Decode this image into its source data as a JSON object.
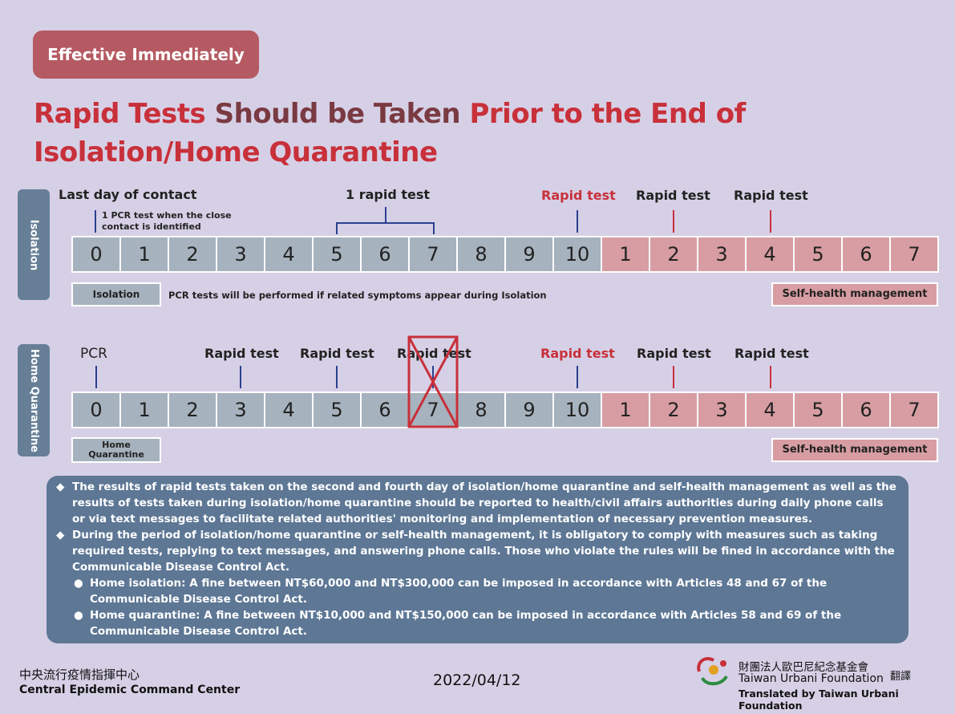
{
  "header": {
    "badge": "Effective Immediately",
    "title_part1": "Rapid Tests",
    "title_part2": " Should be Taken ",
    "title_part3": "Prior to the End of",
    "title_line2": "Isolation/Home Quarantine"
  },
  "isolation": {
    "side_label": "Isolation",
    "label_last_contact": "Last day of contact",
    "label_pcr_note_line1": "1 PCR test when the close",
    "label_pcr_note_line2": "contact is identified",
    "label_one_rapid": "1 rapid test",
    "label_rapid_10": "Rapid test",
    "label_rapid_sh2": "Rapid test",
    "label_rapid_sh4": "Rapid test",
    "days": [
      "0",
      "1",
      "2",
      "3",
      "4",
      "5",
      "6",
      "7",
      "8",
      "9",
      "10"
    ],
    "self_days": [
      "1",
      "2",
      "3",
      "4",
      "5",
      "6",
      "7"
    ],
    "legend_isolation": "Isolation",
    "legend_note": "PCR tests will be performed if related symptoms appear during Isolation",
    "legend_self": "Self-health management"
  },
  "quarantine": {
    "side_label": "Home Quarantine",
    "label_pcr": "PCR",
    "label_rapid_3": "Rapid test",
    "label_rapid_5": "Rapid test",
    "label_rapid_7": "Rapid test",
    "label_rapid_10": "Rapid test",
    "label_rapid_sh2": "Rapid test",
    "label_rapid_sh4": "Rapid test",
    "days": [
      "0",
      "1",
      "2",
      "3",
      "4",
      "5",
      "6",
      "7",
      "8",
      "9",
      "10"
    ],
    "self_days": [
      "1",
      "2",
      "3",
      "4",
      "5",
      "6",
      "7"
    ],
    "legend_home_line1": "Home",
    "legend_home_line2": "Quarantine",
    "legend_self": "Self-health management"
  },
  "notes": {
    "item1": "The results of rapid tests taken on the second and fourth day of isolation/home quarantine and self-health management as well as the results of tests taken during isolation/home quarantine should be reported to health/civil affairs authorities during daily phone calls or via text messages to facilitate related authorities' monitoring and implementation of necessary prevention measures.",
    "item2": "During the period of isolation/home quarantine or self-health management, it is obligatory to comply with measures such as taking required tests, replying to text messages, and answering phone calls. Those who violate the rules will be fined in accordance with the Communicable Disease Control Act.",
    "sub1": "Home isolation: A fine between NT$60,000 and NT$300,000 can be imposed in accordance with Articles 48 and 67 of the Communicable Disease Control Act.",
    "sub2": "Home quarantine: A fine between NT$10,000 and NT$150,000 can be imposed in accordance with Articles 58 and 69 of the Communicable Disease Control Act."
  },
  "footer": {
    "cecc_zh": "中央流行疫情指揮中心",
    "cecc_en": "Central Epidemic Command Center",
    "date": "2022/04/12",
    "foundation_zh": "財團法人歐巴尼紀念基金會",
    "translate_zh": "翻譯",
    "foundation_en": "Taiwan Urbani Foundation",
    "translated_by": "Translated by Taiwan Urbani Foundation"
  },
  "colors": {
    "accent_red": "#c8303a",
    "slate": "#5d7795",
    "gray_cell": "#a6b2bd",
    "pink_cell": "#d79da2"
  }
}
